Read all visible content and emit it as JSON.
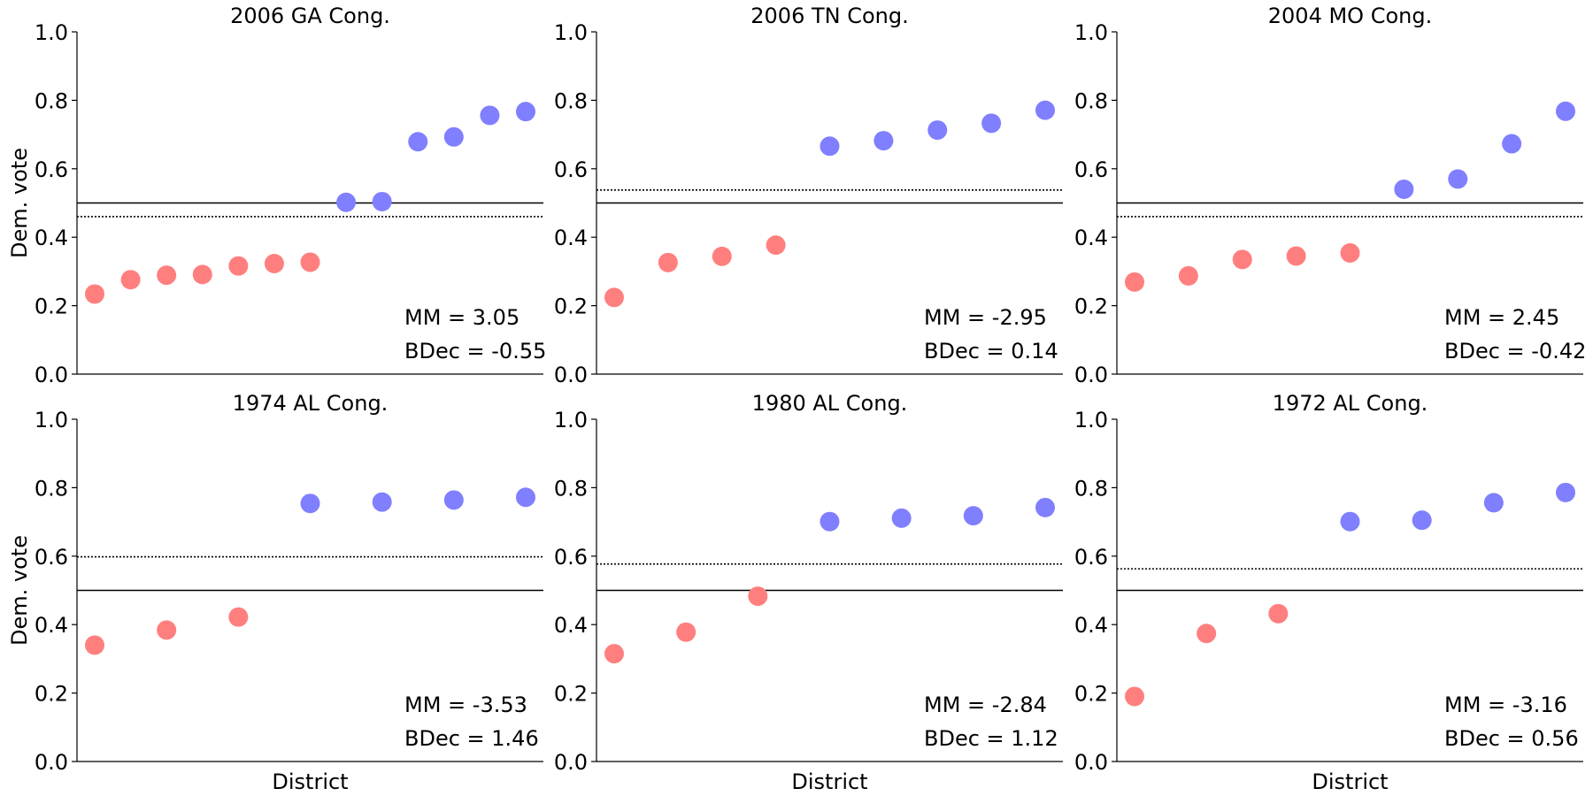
{
  "colors": {
    "red": "#ff7f7f",
    "blue": "#7f7fff",
    "axis": "#000000"
  },
  "chart_data": [
    {
      "type": "scatter",
      "title": "2006 GA Cong.",
      "ylabel": "Dem. vote",
      "xlabel": "",
      "ylim": [
        0,
        1
      ],
      "yticks": [
        "0.0",
        "0.2",
        "0.4",
        "0.6",
        "0.8",
        "1.0"
      ],
      "values": [
        0.234,
        0.276,
        0.289,
        0.291,
        0.316,
        0.323,
        0.327,
        0.502,
        0.504,
        0.679,
        0.693,
        0.756,
        0.767
      ],
      "solid_line": 0.5,
      "dotted_line": 0.46,
      "mm_text": "MM = 3.05",
      "bdec_text": "BDec = -0.55"
    },
    {
      "type": "scatter",
      "title": "2006 TN Cong.",
      "ylabel": "",
      "xlabel": "",
      "ylim": [
        0,
        1
      ],
      "yticks": [
        "0.0",
        "0.2",
        "0.4",
        "0.6",
        "0.8",
        "1.0"
      ],
      "values": [
        0.224,
        0.326,
        0.344,
        0.377,
        0.666,
        0.682,
        0.713,
        0.733,
        0.771
      ],
      "solid_line": 0.5,
      "dotted_line": 0.538,
      "mm_text": "MM = -2.95",
      "bdec_text": "BDec = 0.14"
    },
    {
      "type": "scatter",
      "title": "2004 MO Cong.",
      "ylabel": "",
      "xlabel": "",
      "ylim": [
        0,
        1
      ],
      "yticks": [
        "0.0",
        "0.2",
        "0.4",
        "0.6",
        "0.8",
        "1.0"
      ],
      "values": [
        0.269,
        0.287,
        0.335,
        0.345,
        0.354,
        0.54,
        0.57,
        0.673,
        0.768
      ],
      "solid_line": 0.5,
      "dotted_line": 0.46,
      "mm_text": "MM = 2.45",
      "bdec_text": "BDec = -0.42"
    },
    {
      "type": "scatter",
      "title": "1974 AL Cong.",
      "ylabel": "Dem. vote",
      "xlabel": "",
      "ylim": [
        0,
        1
      ],
      "yticks": [
        "0.0",
        "0.2",
        "0.4",
        "0.6",
        "0.8",
        "1.0"
      ],
      "values": [
        0.34,
        0.384,
        0.422,
        0.754,
        0.758,
        0.764,
        0.772
      ],
      "solid_line": 0.5,
      "dotted_line": 0.598,
      "mm_text": "MM = -3.53",
      "bdec_text": "BDec = 1.46"
    },
    {
      "type": "scatter",
      "title": "1980 AL Cong.",
      "ylabel": "",
      "xlabel": "District",
      "ylim": [
        0,
        1
      ],
      "yticks": [
        "0.0",
        "0.2",
        "0.4",
        "0.6",
        "0.8",
        "1.0"
      ],
      "values": [
        0.315,
        0.378,
        0.483,
        0.701,
        0.711,
        0.718,
        0.742
      ],
      "solid_line": 0.5,
      "dotted_line": 0.577,
      "mm_text": "MM = -2.84",
      "bdec_text": "BDec = 1.12"
    },
    {
      "type": "scatter",
      "title": "1972 AL Cong.",
      "ylabel": "",
      "xlabel": "District",
      "ylim": [
        0,
        1
      ],
      "yticks": [
        "0.0",
        "0.2",
        "0.4",
        "0.6",
        "0.8",
        "1.0"
      ],
      "values": [
        0.19,
        0.374,
        0.432,
        0.701,
        0.705,
        0.756,
        0.786
      ],
      "solid_line": 0.5,
      "dotted_line": 0.563,
      "mm_text": "MM = -3.16",
      "bdec_text": "BDec = 0.56"
    }
  ],
  "shared": {
    "xlabel_first_row_bottom": "District"
  }
}
